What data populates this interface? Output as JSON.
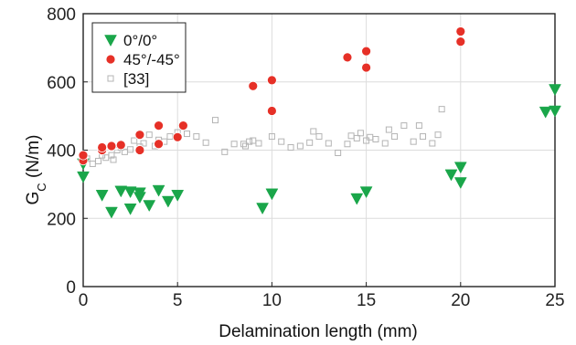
{
  "chart_data": {
    "type": "scatter",
    "xlabel": "Delamination length (mm)",
    "ylabel": "G",
    "ylabel_sub": "C",
    "ylabel_unit": " (N/m)",
    "xlim": [
      0,
      25
    ],
    "ylim": [
      0,
      800
    ],
    "xticks": [
      0,
      5,
      10,
      15,
      20,
      25
    ],
    "yticks": [
      0,
      200,
      400,
      600,
      800
    ],
    "grid": true,
    "legend_position": "top-left",
    "series": [
      {
        "name": "0°/0°",
        "marker": "triangle-down",
        "color": "#1aa64a",
        "points": [
          [
            0,
            322
          ],
          [
            0,
            360
          ],
          [
            1,
            268
          ],
          [
            1.5,
            218
          ],
          [
            2,
            280
          ],
          [
            2.5,
            278
          ],
          [
            2.5,
            228
          ],
          [
            3,
            275
          ],
          [
            3,
            262
          ],
          [
            3.5,
            238
          ],
          [
            4,
            282
          ],
          [
            4.5,
            250
          ],
          [
            5,
            268
          ],
          [
            9.5,
            230
          ],
          [
            10,
            272
          ],
          [
            14.5,
            258
          ],
          [
            15,
            278
          ],
          [
            19.5,
            328
          ],
          [
            20,
            350
          ],
          [
            20,
            305
          ],
          [
            24.5,
            512
          ],
          [
            25,
            578
          ],
          [
            25,
            515
          ]
        ]
      },
      {
        "name": "45°/-45°",
        "marker": "circle",
        "color": "#e63027",
        "points": [
          [
            0,
            370
          ],
          [
            0,
            385
          ],
          [
            1,
            400
          ],
          [
            1,
            408
          ],
          [
            1.5,
            412
          ],
          [
            2,
            415
          ],
          [
            3,
            400
          ],
          [
            3,
            445
          ],
          [
            4,
            418
          ],
          [
            4,
            472
          ],
          [
            5,
            438
          ],
          [
            5.3,
            472
          ],
          [
            9,
            588
          ],
          [
            10,
            605
          ],
          [
            10,
            515
          ],
          [
            14,
            672
          ],
          [
            15,
            690
          ],
          [
            15,
            642
          ],
          [
            20,
            748
          ],
          [
            20,
            718
          ]
        ]
      },
      {
        "name": "[33]",
        "marker": "square-open",
        "color": "#b4b4b4",
        "points": [
          [
            0.2,
            375
          ],
          [
            0.5,
            360
          ],
          [
            0.8,
            368
          ],
          [
            1,
            385
          ],
          [
            1.2,
            378
          ],
          [
            1.5,
            385
          ],
          [
            1.6,
            372
          ],
          [
            1.8,
            400
          ],
          [
            2,
            408
          ],
          [
            2.2,
            395
          ],
          [
            2.5,
            402
          ],
          [
            2.7,
            428
          ],
          [
            3,
            410
          ],
          [
            3.2,
            420
          ],
          [
            3.5,
            445
          ],
          [
            3.8,
            412
          ],
          [
            4,
            430
          ],
          [
            4.3,
            425
          ],
          [
            4.6,
            440
          ],
          [
            5,
            452
          ],
          [
            5.5,
            448
          ],
          [
            6,
            440
          ],
          [
            6.5,
            422
          ],
          [
            7,
            488
          ],
          [
            7.5,
            395
          ],
          [
            8,
            418
          ],
          [
            8.5,
            418
          ],
          [
            8.8,
            425
          ],
          [
            9,
            428
          ],
          [
            9.3,
            420
          ],
          [
            10,
            440
          ],
          [
            10.5,
            425
          ],
          [
            11,
            408
          ],
          [
            11.5,
            412
          ],
          [
            12,
            422
          ],
          [
            12.5,
            440
          ],
          [
            13,
            420
          ],
          [
            13.5,
            392
          ],
          [
            14,
            418
          ],
          [
            14.2,
            442
          ],
          [
            14.5,
            435
          ],
          [
            14.7,
            450
          ],
          [
            15,
            428
          ],
          [
            15.2,
            438
          ],
          [
            15.5,
            432
          ],
          [
            16,
            420
          ],
          [
            16.5,
            440
          ],
          [
            17,
            472
          ],
          [
            17.5,
            425
          ],
          [
            18,
            440
          ],
          [
            18.5,
            420
          ],
          [
            18.8,
            445
          ],
          [
            19,
            520
          ],
          [
            17.8,
            472
          ],
          [
            16.2,
            460
          ],
          [
            12.2,
            455
          ],
          [
            8.6,
            412
          ]
        ]
      }
    ]
  }
}
